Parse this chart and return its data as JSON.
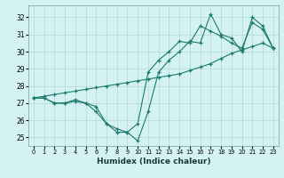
{
  "xlabel": "Humidex (Indice chaleur)",
  "background_color": "#d5f2f2",
  "grid_color": "#b8dcdc",
  "line_color": "#1a7a6e",
  "xlim": [
    -0.5,
    23.5
  ],
  "ylim": [
    24.5,
    32.7
  ],
  "yticks": [
    25,
    26,
    27,
    28,
    29,
    30,
    31,
    32
  ],
  "xticks": [
    0,
    1,
    2,
    3,
    4,
    5,
    6,
    7,
    8,
    9,
    10,
    11,
    12,
    13,
    14,
    15,
    16,
    17,
    18,
    19,
    20,
    21,
    22,
    23
  ],
  "line1_x": [
    0,
    1,
    2,
    3,
    4,
    5,
    6,
    7,
    8,
    9,
    10,
    11,
    12,
    13,
    14,
    15,
    16,
    17,
    18,
    19,
    20,
    21,
    22,
    23
  ],
  "line1_y": [
    27.3,
    27.3,
    27.0,
    27.0,
    27.1,
    27.0,
    26.5,
    25.8,
    25.5,
    25.3,
    24.8,
    26.5,
    28.8,
    29.5,
    30.0,
    30.6,
    30.5,
    32.2,
    31.0,
    30.8,
    30.0,
    32.0,
    31.5,
    30.2
  ],
  "line2_x": [
    0,
    1,
    2,
    3,
    4,
    5,
    6,
    7,
    8,
    9,
    10,
    11,
    12,
    13,
    14,
    15,
    16,
    17,
    18,
    19,
    20,
    21,
    22,
    23
  ],
  "line2_y": [
    27.3,
    27.4,
    27.5,
    27.6,
    27.7,
    27.8,
    27.9,
    28.0,
    28.1,
    28.2,
    28.3,
    28.4,
    28.5,
    28.6,
    28.7,
    28.9,
    29.1,
    29.3,
    29.6,
    29.9,
    30.1,
    30.3,
    30.5,
    30.2
  ],
  "line3_x": [
    0,
    1,
    2,
    3,
    4,
    5,
    6,
    7,
    8,
    9,
    10,
    11,
    12,
    13,
    14,
    15,
    16,
    17,
    18,
    19,
    20,
    21,
    22,
    23
  ],
  "line3_y": [
    27.3,
    27.3,
    27.0,
    27.0,
    27.2,
    27.0,
    26.8,
    25.8,
    25.3,
    25.3,
    25.8,
    28.8,
    29.5,
    30.0,
    30.6,
    30.5,
    31.5,
    31.2,
    30.9,
    30.5,
    30.2,
    31.7,
    31.3,
    30.2
  ]
}
